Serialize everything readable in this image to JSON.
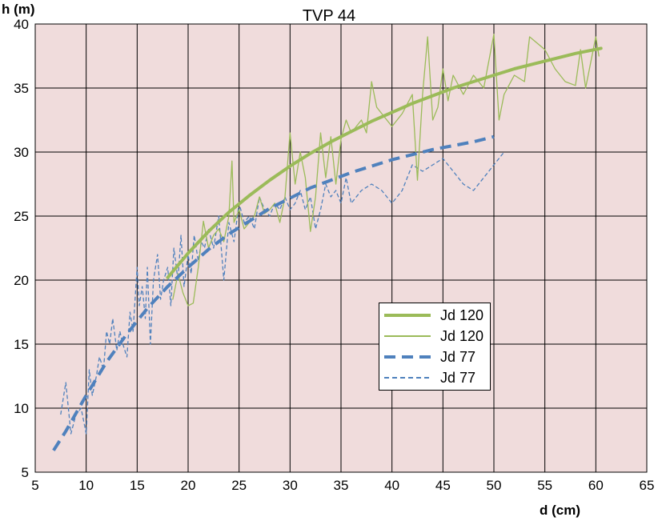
{
  "chart_data": {
    "type": "line",
    "title": "TVP 44",
    "xlabel": "d (cm)",
    "ylabel": "h (m)",
    "xlim": [
      5,
      65
    ],
    "ylim": [
      5,
      40
    ],
    "xticks": [
      "5",
      "10",
      "15",
      "20",
      "25",
      "30",
      "35",
      "40",
      "45",
      "50",
      "55",
      "60",
      "65"
    ],
    "yticks": [
      "5",
      "10",
      "15",
      "20",
      "25",
      "30",
      "35",
      "40"
    ],
    "grid": true,
    "legend_position": "lower-right",
    "plot_background": "#f0dcdc",
    "series": [
      {
        "name": "Jd 120",
        "style": "thick-solid",
        "color": "#9bbb59",
        "x": [
          18,
          20,
          22,
          24,
          26,
          28,
          30,
          32,
          34,
          36,
          38,
          40,
          42,
          44,
          46,
          48,
          50,
          52,
          54,
          56,
          58,
          60.5
        ],
        "y": [
          20.2,
          22.1,
          23.8,
          25.3,
          26.6,
          27.8,
          28.9,
          29.9,
          30.8,
          31.6,
          32.4,
          33.1,
          33.8,
          34.4,
          35.0,
          35.5,
          36.0,
          36.5,
          36.9,
          37.3,
          37.7,
          38.1
        ]
      },
      {
        "name": "Jd 120",
        "style": "thin-solid",
        "color": "#9bbb59",
        "x": [
          18.5,
          19,
          19.5,
          20,
          20.5,
          21,
          21.5,
          22,
          22.5,
          23,
          23.5,
          24,
          24.3,
          24.5,
          25,
          25.5,
          26,
          26.5,
          27,
          27.5,
          28,
          28.5,
          29,
          29.5,
          30,
          30.5,
          31,
          31.5,
          32,
          32.5,
          33,
          33.5,
          34,
          34.5,
          35,
          35.5,
          36,
          37,
          37.5,
          38,
          38.5,
          39,
          40,
          41,
          42,
          42.5,
          43,
          43.5,
          44,
          44.5,
          45,
          45.5,
          46,
          47,
          48,
          49,
          50,
          50.5,
          51,
          52,
          53,
          53.5,
          55,
          56,
          57,
          58,
          58.5,
          59,
          60,
          60.3
        ],
        "y": [
          18.5,
          20.5,
          19,
          18,
          18.2,
          21,
          24.6,
          22.5,
          23.5,
          24,
          23,
          25,
          29.3,
          24.5,
          25.5,
          24,
          24.5,
          25,
          26.5,
          25.2,
          25.5,
          26,
          24.5,
          26.5,
          31.5,
          27.5,
          30,
          28,
          23.8,
          26.5,
          31.5,
          28,
          31.2,
          27.5,
          31,
          32.5,
          31.5,
          32.5,
          31.5,
          35.5,
          33.5,
          33,
          32,
          33,
          34.5,
          27.8,
          34.5,
          39,
          32.5,
          33.5,
          36.5,
          34,
          36,
          34.5,
          36,
          35,
          39.2,
          32.5,
          34.5,
          36,
          35.5,
          39,
          38,
          36.5,
          35.5,
          35.2,
          38,
          35,
          39,
          37.5
        ]
      },
      {
        "name": "Jd 77",
        "style": "thick-dashed",
        "color": "#4f81bd",
        "x": [
          6.8,
          8,
          10,
          12,
          14,
          16,
          18,
          20,
          22,
          24,
          26,
          28,
          30,
          32,
          34,
          36,
          38,
          40,
          42,
          44,
          46,
          48,
          50
        ],
        "y": [
          6.7,
          8.2,
          11.0,
          13.6,
          15.8,
          17.8,
          19.5,
          21.0,
          22.4,
          23.6,
          24.6,
          25.6,
          26.4,
          27.2,
          27.8,
          28.4,
          28.9,
          29.4,
          29.8,
          30.2,
          30.5,
          30.8,
          31.2
        ]
      },
      {
        "name": "Jd 77",
        "style": "thin-dashed",
        "color": "#4f81bd",
        "x": [
          7.5,
          8,
          8.5,
          9,
          9.5,
          10,
          10.3,
          10.6,
          11,
          11.3,
          11.7,
          12,
          12.3,
          12.6,
          13,
          13.3,
          13.6,
          14,
          14.3,
          14.6,
          15,
          15.2,
          15.5,
          15.8,
          16,
          16.3,
          16.6,
          17,
          17.3,
          17.6,
          18,
          18.3,
          18.6,
          19,
          19.3,
          19.6,
          20,
          20.3,
          20.6,
          21,
          21.3,
          21.6,
          22,
          22.5,
          23,
          23.5,
          24,
          24.5,
          25,
          25.5,
          26,
          26.5,
          27,
          27.5,
          28,
          28.5,
          29,
          29.5,
          30,
          30.5,
          31,
          31.5,
          32,
          32.5,
          33,
          33.5,
          34,
          34.5,
          35,
          35.5,
          36,
          37,
          38,
          39,
          40,
          41,
          42,
          43,
          44,
          45,
          46,
          47,
          48,
          49,
          50,
          51
        ],
        "y": [
          9.5,
          12,
          8,
          9.5,
          10,
          8,
          13,
          11,
          12.5,
          14,
          13,
          16,
          15,
          17,
          14.5,
          16,
          15,
          14,
          17.5,
          16,
          21,
          18,
          19.5,
          17,
          21,
          15,
          20,
          22,
          18.5,
          20,
          21,
          18,
          22.5,
          20,
          23.5,
          19.5,
          22,
          20.5,
          23.5,
          21.5,
          23,
          22.5,
          24,
          22.5,
          25,
          20,
          24.5,
          23,
          26,
          24.5,
          25,
          24,
          26.5,
          25.5,
          25,
          26,
          25.5,
          26.5,
          25.5,
          26,
          27,
          25.5,
          26.5,
          24,
          25.5,
          27.5,
          26.5,
          27,
          26,
          28,
          26,
          27,
          27.5,
          27,
          26,
          27,
          29,
          28.5,
          29,
          29.5,
          28.5,
          27.5,
          27,
          28,
          29,
          30
        ]
      }
    ]
  }
}
